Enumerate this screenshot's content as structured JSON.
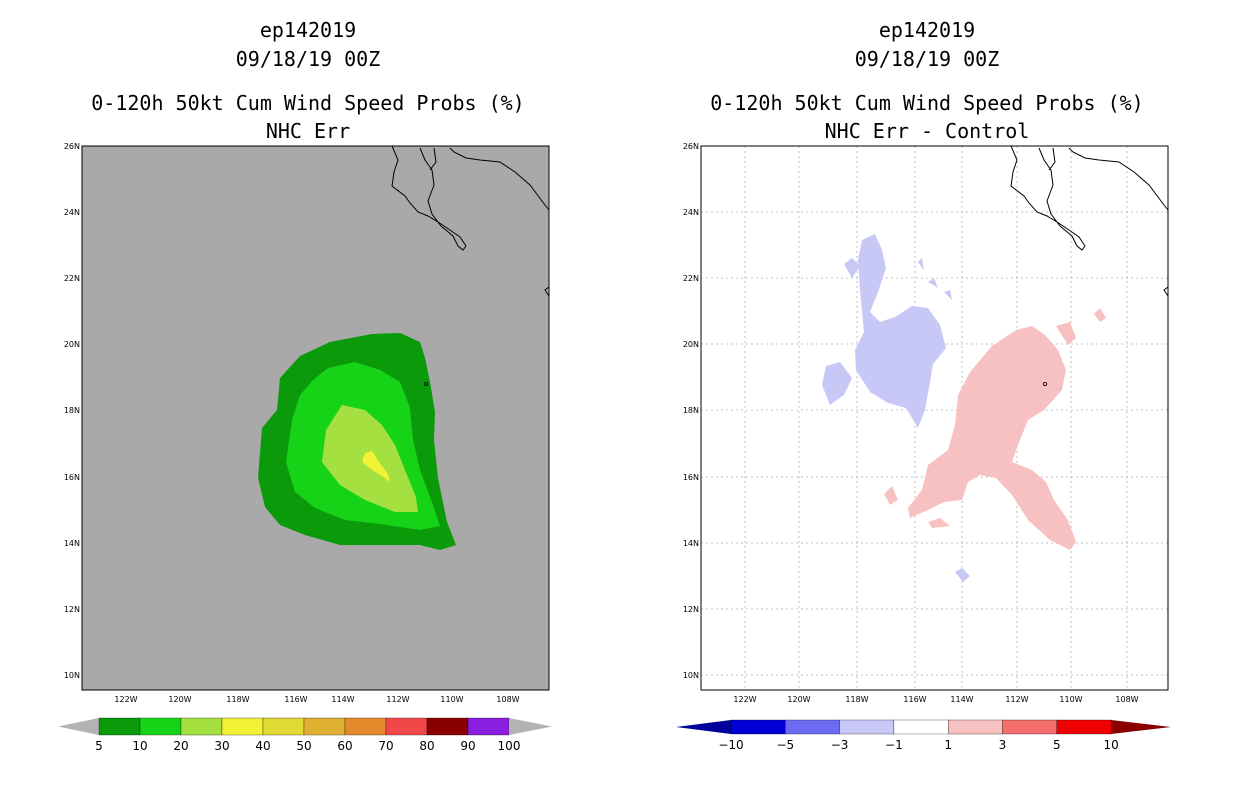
{
  "colors": {
    "background": "#ffffff",
    "land_bg_left": "#a9a9a9",
    "prob_5": "#0a9a0a",
    "prob_10": "#17d317",
    "prob_20": "#a3e040",
    "prob_30": "#f1f135",
    "neg_diff": "#c8c8f7",
    "pos_diff": "#f8c1c1"
  },
  "panels": [
    {
      "title1": "ep142019",
      "title2": "09/18/19 00Z",
      "title3": "0-120h 50kt Cum Wind Speed Probs (%)",
      "title4": "NHC Err"
    },
    {
      "title1": "ep142019",
      "title2": "09/18/19 00Z",
      "title3": "0-120h 50kt Cum Wind Speed Probs (%)",
      "title4": "NHC Err - Control"
    }
  ],
  "lat_labels": [
    "26N",
    "24N",
    "22N",
    "20N",
    "18N",
    "16N",
    "14N",
    "12N",
    "10N"
  ],
  "lon_labels": [
    "122W",
    "120W",
    "118W",
    "116W",
    "114W",
    "112W",
    "110W",
    "108W"
  ],
  "colorbar_left": {
    "labels": [
      "5",
      "10",
      "20",
      "30",
      "40",
      "50",
      "60",
      "70",
      "80",
      "90",
      "100"
    ],
    "colors": [
      "#0a9a0a",
      "#17d317",
      "#a3e040",
      "#f1f135",
      "#e1d934",
      "#e1b032",
      "#e48a2d",
      "#f04848",
      "#8a0000",
      "#8a1fe0"
    ],
    "end_color": "#b3b3b3"
  },
  "colorbar_right": {
    "labels": [
      "-10",
      "-5",
      "-3",
      "-1",
      "1",
      "3",
      "5",
      "10"
    ],
    "colors": [
      "#0000d5",
      "#6b6bf4",
      "#c8c8f7",
      "#ffffff",
      "#f8c1c1",
      "#f46e6e",
      "#f00000"
    ],
    "low_color": "#00009a",
    "high_color": "#8a0000"
  },
  "map_data": {
    "type": "wind_speed_probability_contours",
    "storm": "ep142019",
    "valid": "09/18/19 00Z",
    "lat_range": [
      9.6,
      26
    ],
    "lon_range": [
      -123.6,
      -106.5
    ],
    "left_levels_percent": [
      5,
      10,
      20,
      30
    ],
    "right_levels_percent": [
      -1,
      1
    ]
  }
}
